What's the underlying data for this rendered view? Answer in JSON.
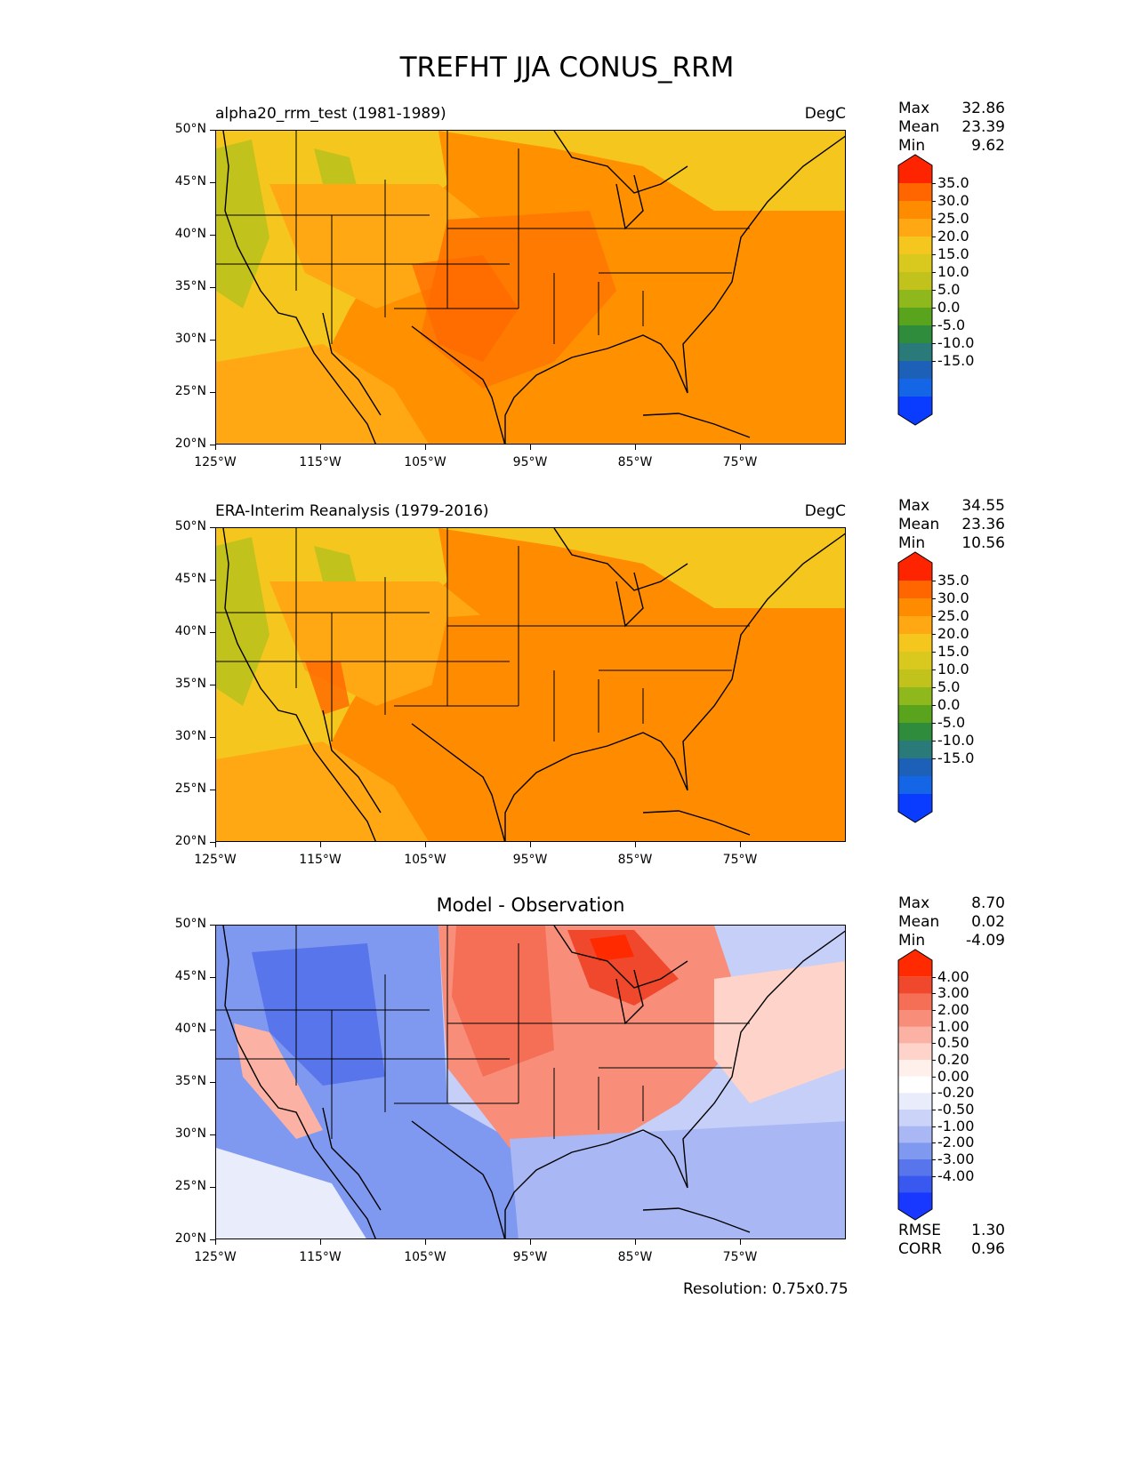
{
  "title": "TREFHT JJA CONUS_RRM",
  "panels": [
    {
      "subtitle": "alpha20_rrm_test (1981-1989)",
      "units": "DegC",
      "stats": [
        {
          "name": "Max",
          "value": "32.86"
        },
        {
          "name": "Mean",
          "value": "23.39"
        },
        {
          "name": "Min",
          "value": "9.62"
        }
      ],
      "colorbar": {
        "labels": [
          "35.0",
          "30.0",
          "25.0",
          "20.0",
          "15.0",
          "10.0",
          "5.0",
          "0.0",
          "-5.0",
          "-10.0",
          "-15.0"
        ],
        "colors": [
          "#ff2400",
          "#ff6600",
          "#ff8c00",
          "#ffa814",
          "#f5c61e",
          "#d9c81e",
          "#c2c21c",
          "#8fb81c",
          "#5aa31c",
          "#2e8c3c",
          "#2b7a7a",
          "#1c60b8",
          "#1466e6",
          "#0a3cff"
        ]
      }
    },
    {
      "subtitle": "ERA-Interim Reanalysis (1979-2016)",
      "units": "DegC",
      "stats": [
        {
          "name": "Max",
          "value": "34.55"
        },
        {
          "name": "Mean",
          "value": "23.36"
        },
        {
          "name": "Min",
          "value": "10.56"
        }
      ],
      "colorbar": {
        "labels": [
          "35.0",
          "30.0",
          "25.0",
          "20.0",
          "15.0",
          "10.0",
          "5.0",
          "0.0",
          "-5.0",
          "-10.0",
          "-15.0"
        ],
        "colors": [
          "#ff2400",
          "#ff6600",
          "#ff8c00",
          "#ffa814",
          "#f5c61e",
          "#d9c81e",
          "#c2c21c",
          "#8fb81c",
          "#5aa31c",
          "#2e8c3c",
          "#2b7a7a",
          "#1c60b8",
          "#1466e6",
          "#0a3cff"
        ]
      }
    },
    {
      "subtitle": "Model - Observation",
      "units": "",
      "stats": [
        {
          "name": "Max",
          "value": "8.70"
        },
        {
          "name": "Mean",
          "value": "0.02"
        },
        {
          "name": "Min",
          "value": "-4.09"
        }
      ],
      "colorbar": {
        "labels": [
          "4.00",
          "3.00",
          "2.00",
          "1.00",
          "0.50",
          "0.20",
          "0.00",
          "-0.20",
          "-0.50",
          "-1.00",
          "-2.00",
          "-3.00",
          "-4.00"
        ],
        "colors": [
          "#ff2a00",
          "#f0482c",
          "#f56e56",
          "#f88e7a",
          "#fbb2a4",
          "#fdd3ca",
          "#fff0ec",
          "#ffffff",
          "#e8ecfb",
          "#cbd4f8",
          "#a9b8f5",
          "#8099f0",
          "#5875ec",
          "#3858f0",
          "#1838ff"
        ]
      },
      "extra_stats": [
        {
          "name": "RMSE",
          "value": "1.30"
        },
        {
          "name": "CORR",
          "value": "0.96"
        }
      ]
    }
  ],
  "y_ticks": [
    "50°N",
    "45°N",
    "40°N",
    "35°N",
    "30°N",
    "25°N",
    "20°N"
  ],
  "x_ticks": [
    "125°W",
    "115°W",
    "105°W",
    "95°W",
    "85°W",
    "75°W"
  ],
  "resolution": "Resolution: 0.75x0.75",
  "colors": {
    "warm_base": "#ff8c00",
    "warm_light": "#f5c61e",
    "diff_pos": "#f56e56",
    "diff_neg": "#8099f0",
    "coast": "#000000"
  }
}
